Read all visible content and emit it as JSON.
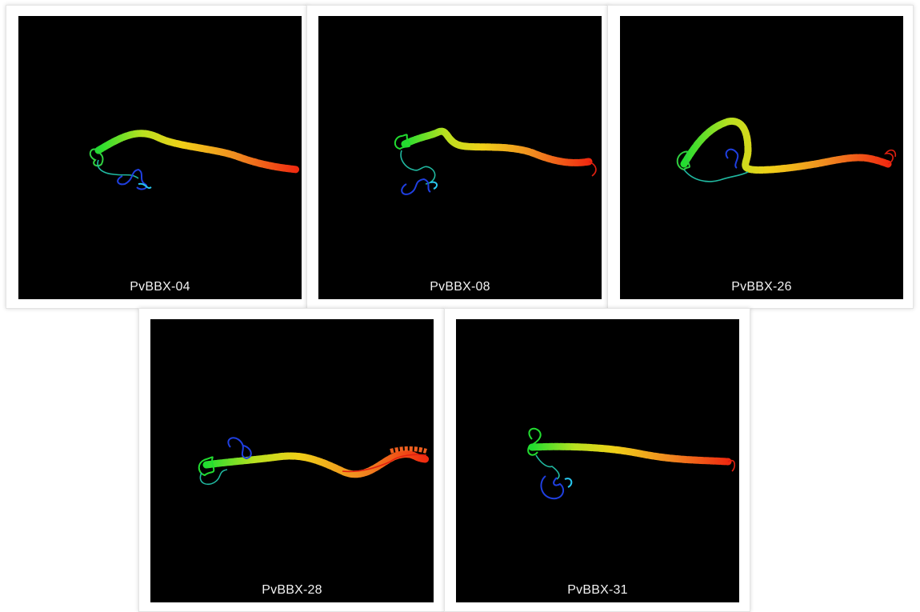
{
  "panels": [
    {
      "label": "PvBBX-04"
    },
    {
      "label": "PvBBX-08"
    },
    {
      "label": "PvBBX-26"
    },
    {
      "label": "PvBBX-28"
    },
    {
      "label": "PvBBX-31"
    }
  ],
  "colors": {
    "background": "#000000",
    "caption": "#f2f2f2",
    "gradient": [
      "#1f2fd8",
      "#28c8f0",
      "#30d040",
      "#e8e020",
      "#f08020",
      "#f02010"
    ]
  }
}
